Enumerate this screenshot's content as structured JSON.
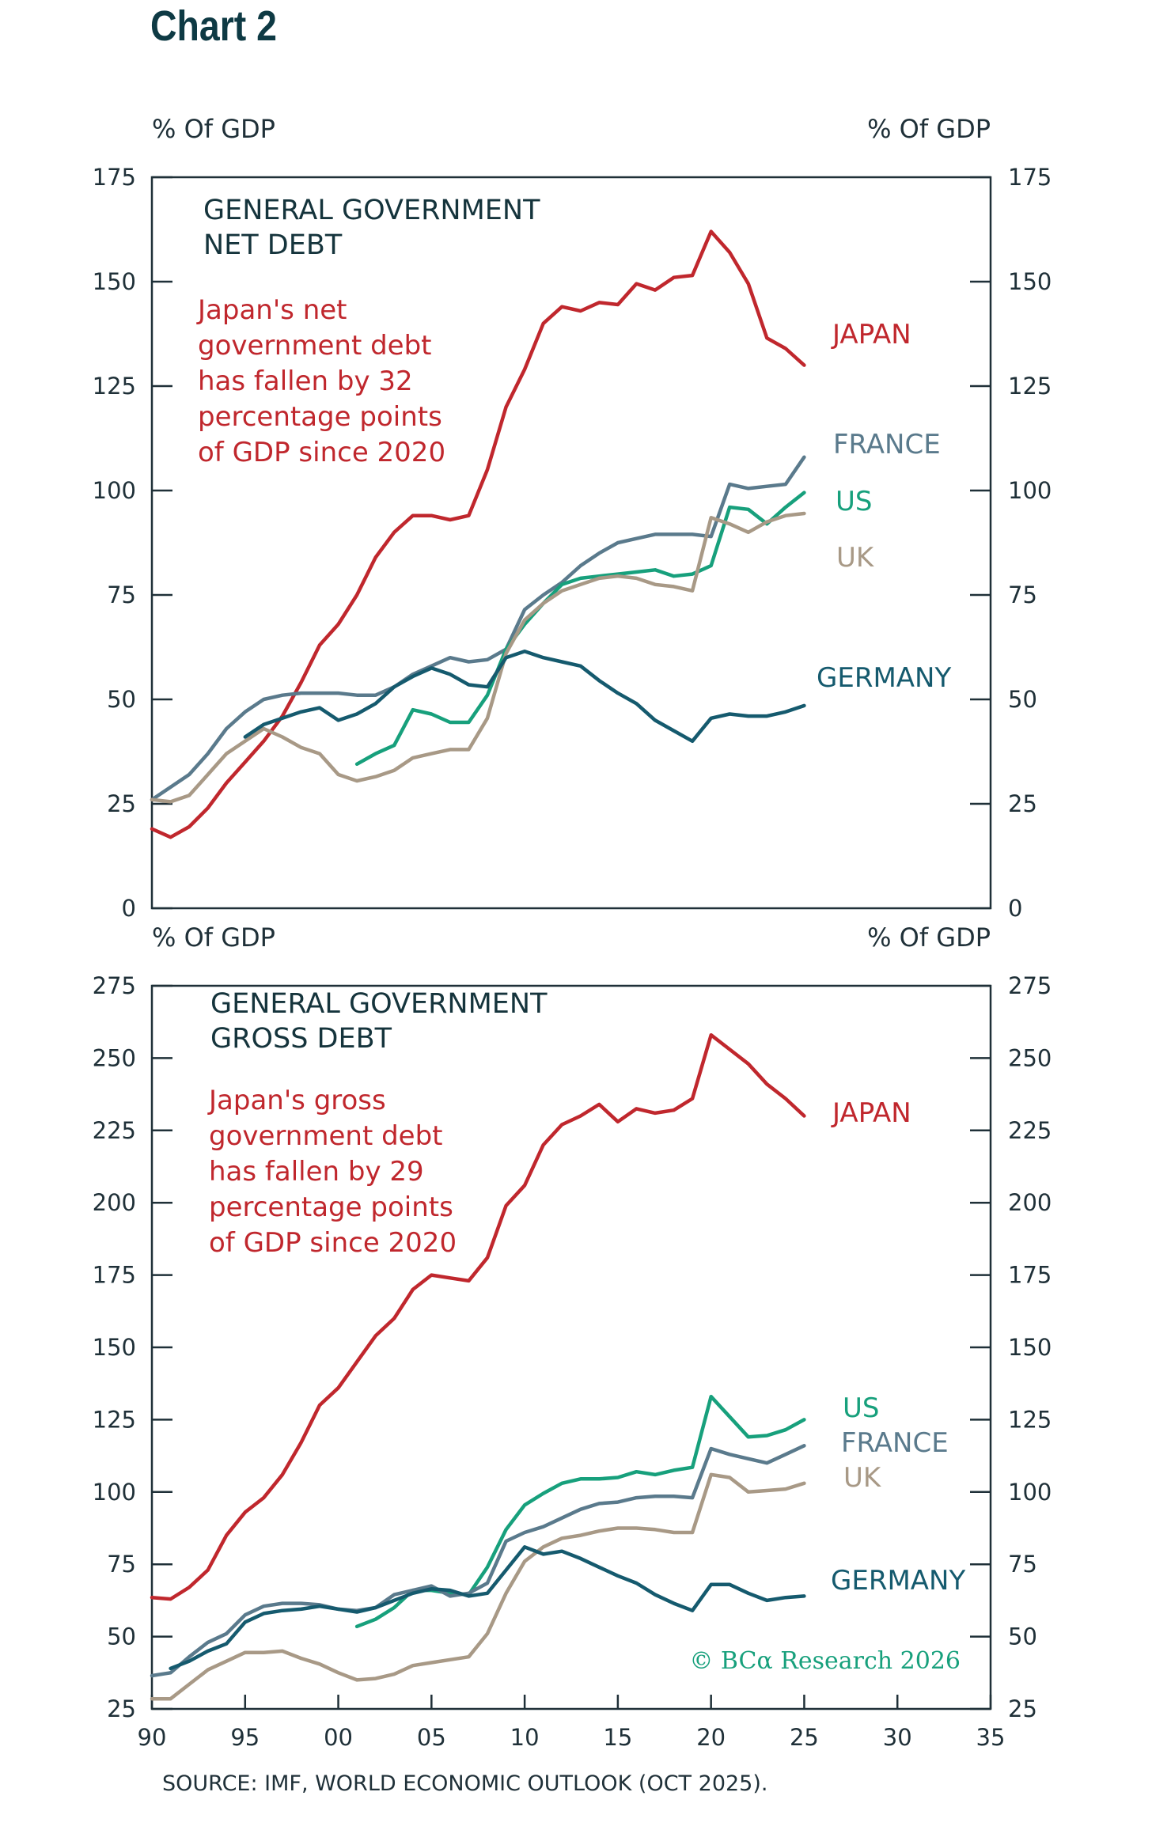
{
  "title": "Chart 2",
  "source": "SOURCE: IMF, WORLD ECONOMIC OUTLOOK (OCT 2025).",
  "credit": "© BCα Research 2026",
  "chart_data": [
    {
      "type": "line",
      "title_lines": [
        "GENERAL GOVERNMENT",
        "NET DEBT"
      ],
      "ylabel_left": "% Of GDP",
      "ylabel_right": "% Of GDP",
      "ylim": [
        0,
        175
      ],
      "yticks": [
        0,
        25,
        50,
        75,
        100,
        125,
        150,
        175
      ],
      "xlim": [
        1990,
        2035
      ],
      "annotation_lines": [
        "Japan's net",
        "government debt",
        "has fallen by 32",
        "percentage points",
        "of GDP since 2020"
      ],
      "annotation_color": "#c0272d",
      "series": [
        {
          "name": "JAPAN",
          "color": "#c0272d",
          "x": [
            1990,
            1991,
            1992,
            1993,
            1994,
            1995,
            1996,
            1997,
            1998,
            1999,
            2000,
            2001,
            2002,
            2003,
            2004,
            2005,
            2006,
            2007,
            2008,
            2009,
            2010,
            2011,
            2012,
            2013,
            2014,
            2015,
            2016,
            2017,
            2018,
            2019,
            2020,
            2021,
            2022,
            2023,
            2024,
            2025
          ],
          "y": [
            19,
            17,
            19.5,
            24,
            30,
            35,
            40,
            46,
            54,
            63,
            68,
            75,
            84,
            90,
            94,
            94,
            93,
            94,
            105,
            120,
            129,
            140,
            144,
            143,
            145,
            144.5,
            149.5,
            148,
            151,
            151.5,
            162,
            157,
            149.5,
            136.5,
            134,
            130
          ]
        },
        {
          "name": "FRANCE",
          "color": "#5a7a8c",
          "x": [
            1990,
            1991,
            1992,
            1993,
            1994,
            1995,
            1996,
            1997,
            1998,
            1999,
            2000,
            2001,
            2002,
            2003,
            2004,
            2005,
            2006,
            2007,
            2008,
            2009,
            2010,
            2011,
            2012,
            2013,
            2014,
            2015,
            2016,
            2017,
            2018,
            2019,
            2020,
            2021,
            2022,
            2023,
            2024,
            2025
          ],
          "y": [
            26,
            29,
            32,
            37,
            43,
            47,
            50,
            51,
            51.5,
            51.5,
            51.5,
            51,
            51,
            53,
            56,
            58,
            60,
            59,
            59.5,
            62,
            71.5,
            75,
            78,
            82,
            85,
            87.5,
            88.5,
            89.5,
            89.5,
            89.5,
            89,
            101.5,
            100.5,
            101,
            101.5,
            108
          ]
        },
        {
          "name": "US",
          "color": "#17a07c",
          "x": [
            2001,
            2002,
            2003,
            2004,
            2005,
            2006,
            2007,
            2008,
            2009,
            2010,
            2011,
            2012,
            2013,
            2014,
            2015,
            2016,
            2017,
            2018,
            2019,
            2020,
            2021,
            2022,
            2023,
            2024,
            2025
          ],
          "y": [
            34.5,
            37,
            39,
            47.5,
            46.5,
            44.5,
            44.5,
            51,
            62,
            68,
            73,
            77.5,
            79,
            79.5,
            80,
            80.5,
            81,
            79.5,
            80,
            82,
            96,
            95.5,
            92,
            96,
            99.5
          ]
        },
        {
          "name": "UK",
          "color": "#a89986",
          "x": [
            1990,
            1991,
            1992,
            1993,
            1994,
            1995,
            1996,
            1997,
            1998,
            1999,
            2000,
            2001,
            2002,
            2003,
            2004,
            2005,
            2006,
            2007,
            2008,
            2009,
            2010,
            2011,
            2012,
            2013,
            2014,
            2015,
            2016,
            2017,
            2018,
            2019,
            2020,
            2021,
            2022,
            2023,
            2024,
            2025
          ],
          "y": [
            26,
            25.5,
            27,
            32,
            37,
            40,
            43,
            41,
            38.5,
            37,
            32,
            30.5,
            31.5,
            33,
            36,
            37,
            38,
            38,
            45.5,
            61,
            69,
            73,
            76,
            77.5,
            79,
            79.5,
            79,
            77.5,
            77,
            76,
            93.5,
            92,
            90,
            92.5,
            94,
            94.5
          ]
        },
        {
          "name": "GERMANY",
          "color": "#155a6e",
          "x": [
            1995,
            1996,
            1997,
            1998,
            1999,
            2000,
            2001,
            2002,
            2003,
            2004,
            2005,
            2006,
            2007,
            2008,
            2009,
            2010,
            2011,
            2012,
            2013,
            2014,
            2015,
            2016,
            2017,
            2018,
            2019,
            2020,
            2021,
            2022,
            2023,
            2024,
            2025
          ],
          "y": [
            41,
            44,
            45.5,
            47,
            48,
            45,
            46.5,
            49,
            53,
            55.5,
            57.5,
            56,
            53.5,
            53,
            60,
            61.5,
            60,
            59,
            58,
            54.5,
            51.5,
            49,
            45,
            42.5,
            40,
            45.5,
            46.5,
            46,
            46,
            47,
            48.5
          ]
        }
      ]
    },
    {
      "type": "line",
      "title_lines": [
        "GENERAL GOVERNMENT",
        "GROSS DEBT"
      ],
      "ylabel_left": "% Of GDP",
      "ylabel_right": "% Of GDP",
      "ylim": [
        25,
        275
      ],
      "yticks": [
        25,
        50,
        75,
        100,
        125,
        150,
        175,
        200,
        225,
        250,
        275
      ],
      "xlim": [
        1990,
        2035
      ],
      "xticks": [
        1990,
        1995,
        2000,
        2005,
        2010,
        2015,
        2020,
        2025,
        2030,
        2035
      ],
      "xticklabels": [
        "90",
        "95",
        "00",
        "05",
        "10",
        "15",
        "20",
        "25",
        "30",
        "35"
      ],
      "annotation_lines": [
        "Japan's gross",
        "government debt",
        "has fallen by 29",
        "percentage points",
        "of GDP since 2020"
      ],
      "annotation_color": "#c0272d",
      "series": [
        {
          "name": "JAPAN",
          "color": "#c0272d",
          "x": [
            1990,
            1991,
            1992,
            1993,
            1994,
            1995,
            1996,
            1997,
            1998,
            1999,
            2000,
            2001,
            2002,
            2003,
            2004,
            2005,
            2006,
            2007,
            2008,
            2009,
            2010,
            2011,
            2012,
            2013,
            2014,
            2015,
            2016,
            2017,
            2018,
            2019,
            2020,
            2021,
            2022,
            2023,
            2024,
            2025
          ],
          "y": [
            63.5,
            63,
            67,
            73,
            85,
            93,
            98,
            106,
            117,
            130,
            136,
            145,
            154,
            160,
            170,
            175,
            174,
            173,
            181,
            199,
            206,
            220,
            227,
            230,
            234,
            228,
            232.5,
            231,
            232,
            236,
            258,
            253,
            248,
            241,
            236,
            230
          ]
        },
        {
          "name": "US",
          "color": "#17a07c",
          "x": [
            2001,
            2002,
            2003,
            2004,
            2005,
            2006,
            2007,
            2008,
            2009,
            2010,
            2011,
            2012,
            2013,
            2014,
            2015,
            2016,
            2017,
            2018,
            2019,
            2020,
            2021,
            2022,
            2023,
            2024,
            2025
          ],
          "y": [
            53.5,
            56,
            60,
            66,
            66,
            65,
            64.5,
            74,
            87,
            95.5,
            99.5,
            103,
            104.5,
            104.5,
            105,
            107,
            106,
            107.5,
            108.5,
            133,
            126,
            119,
            119.5,
            121.5,
            125
          ]
        },
        {
          "name": "FRANCE",
          "color": "#5a7a8c",
          "x": [
            1990,
            1991,
            1992,
            1993,
            1994,
            1995,
            1996,
            1997,
            1998,
            1999,
            2000,
            2001,
            2002,
            2003,
            2004,
            2005,
            2006,
            2007,
            2008,
            2009,
            2010,
            2011,
            2012,
            2013,
            2014,
            2015,
            2016,
            2017,
            2018,
            2019,
            2020,
            2021,
            2022,
            2023,
            2024,
            2025
          ],
          "y": [
            36.5,
            37.5,
            43,
            48,
            51,
            57.5,
            60.5,
            61.5,
            61.5,
            61,
            59.5,
            59,
            60,
            64.5,
            66,
            67.5,
            64,
            65,
            68.5,
            83,
            86,
            88,
            91,
            94,
            96,
            96.5,
            98,
            98.5,
            98.5,
            98,
            115,
            113,
            111.5,
            110,
            113,
            116
          ]
        },
        {
          "name": "UK",
          "color": "#a89986",
          "x": [
            1990,
            1991,
            1992,
            1993,
            1994,
            1995,
            1996,
            1997,
            1998,
            1999,
            2000,
            2001,
            2002,
            2003,
            2004,
            2005,
            2006,
            2007,
            2008,
            2009,
            2010,
            2011,
            2012,
            2013,
            2014,
            2015,
            2016,
            2017,
            2018,
            2019,
            2020,
            2021,
            2022,
            2023,
            2024,
            2025
          ],
          "y": [
            28.5,
            28.5,
            33.5,
            38.5,
            41.5,
            44.5,
            44.5,
            45,
            42.5,
            40.5,
            37.5,
            35,
            35.5,
            37,
            40,
            41,
            42,
            43,
            51,
            65,
            76,
            81,
            84,
            85,
            86.5,
            87.5,
            87.5,
            87,
            86,
            86,
            106,
            105,
            100,
            100.5,
            101,
            103
          ]
        },
        {
          "name": "GERMANY",
          "color": "#155a6e",
          "x": [
            1991,
            1992,
            1993,
            1994,
            1995,
            1996,
            1997,
            1998,
            1999,
            2000,
            2001,
            2002,
            2003,
            2004,
            2005,
            2006,
            2007,
            2008,
            2009,
            2010,
            2011,
            2012,
            2013,
            2014,
            2015,
            2016,
            2017,
            2018,
            2019,
            2020,
            2021,
            2022,
            2023,
            2024,
            2025
          ],
          "y": [
            39,
            41.5,
            45,
            47.5,
            55,
            58,
            59,
            59.5,
            60.5,
            59.5,
            58.5,
            60,
            62.5,
            65,
            66.5,
            66,
            64,
            65,
            73,
            81,
            78.5,
            79.5,
            77,
            74,
            71,
            68.5,
            64.5,
            61.5,
            59,
            68,
            68,
            65,
            62.5,
            63.5,
            64
          ]
        }
      ]
    }
  ]
}
